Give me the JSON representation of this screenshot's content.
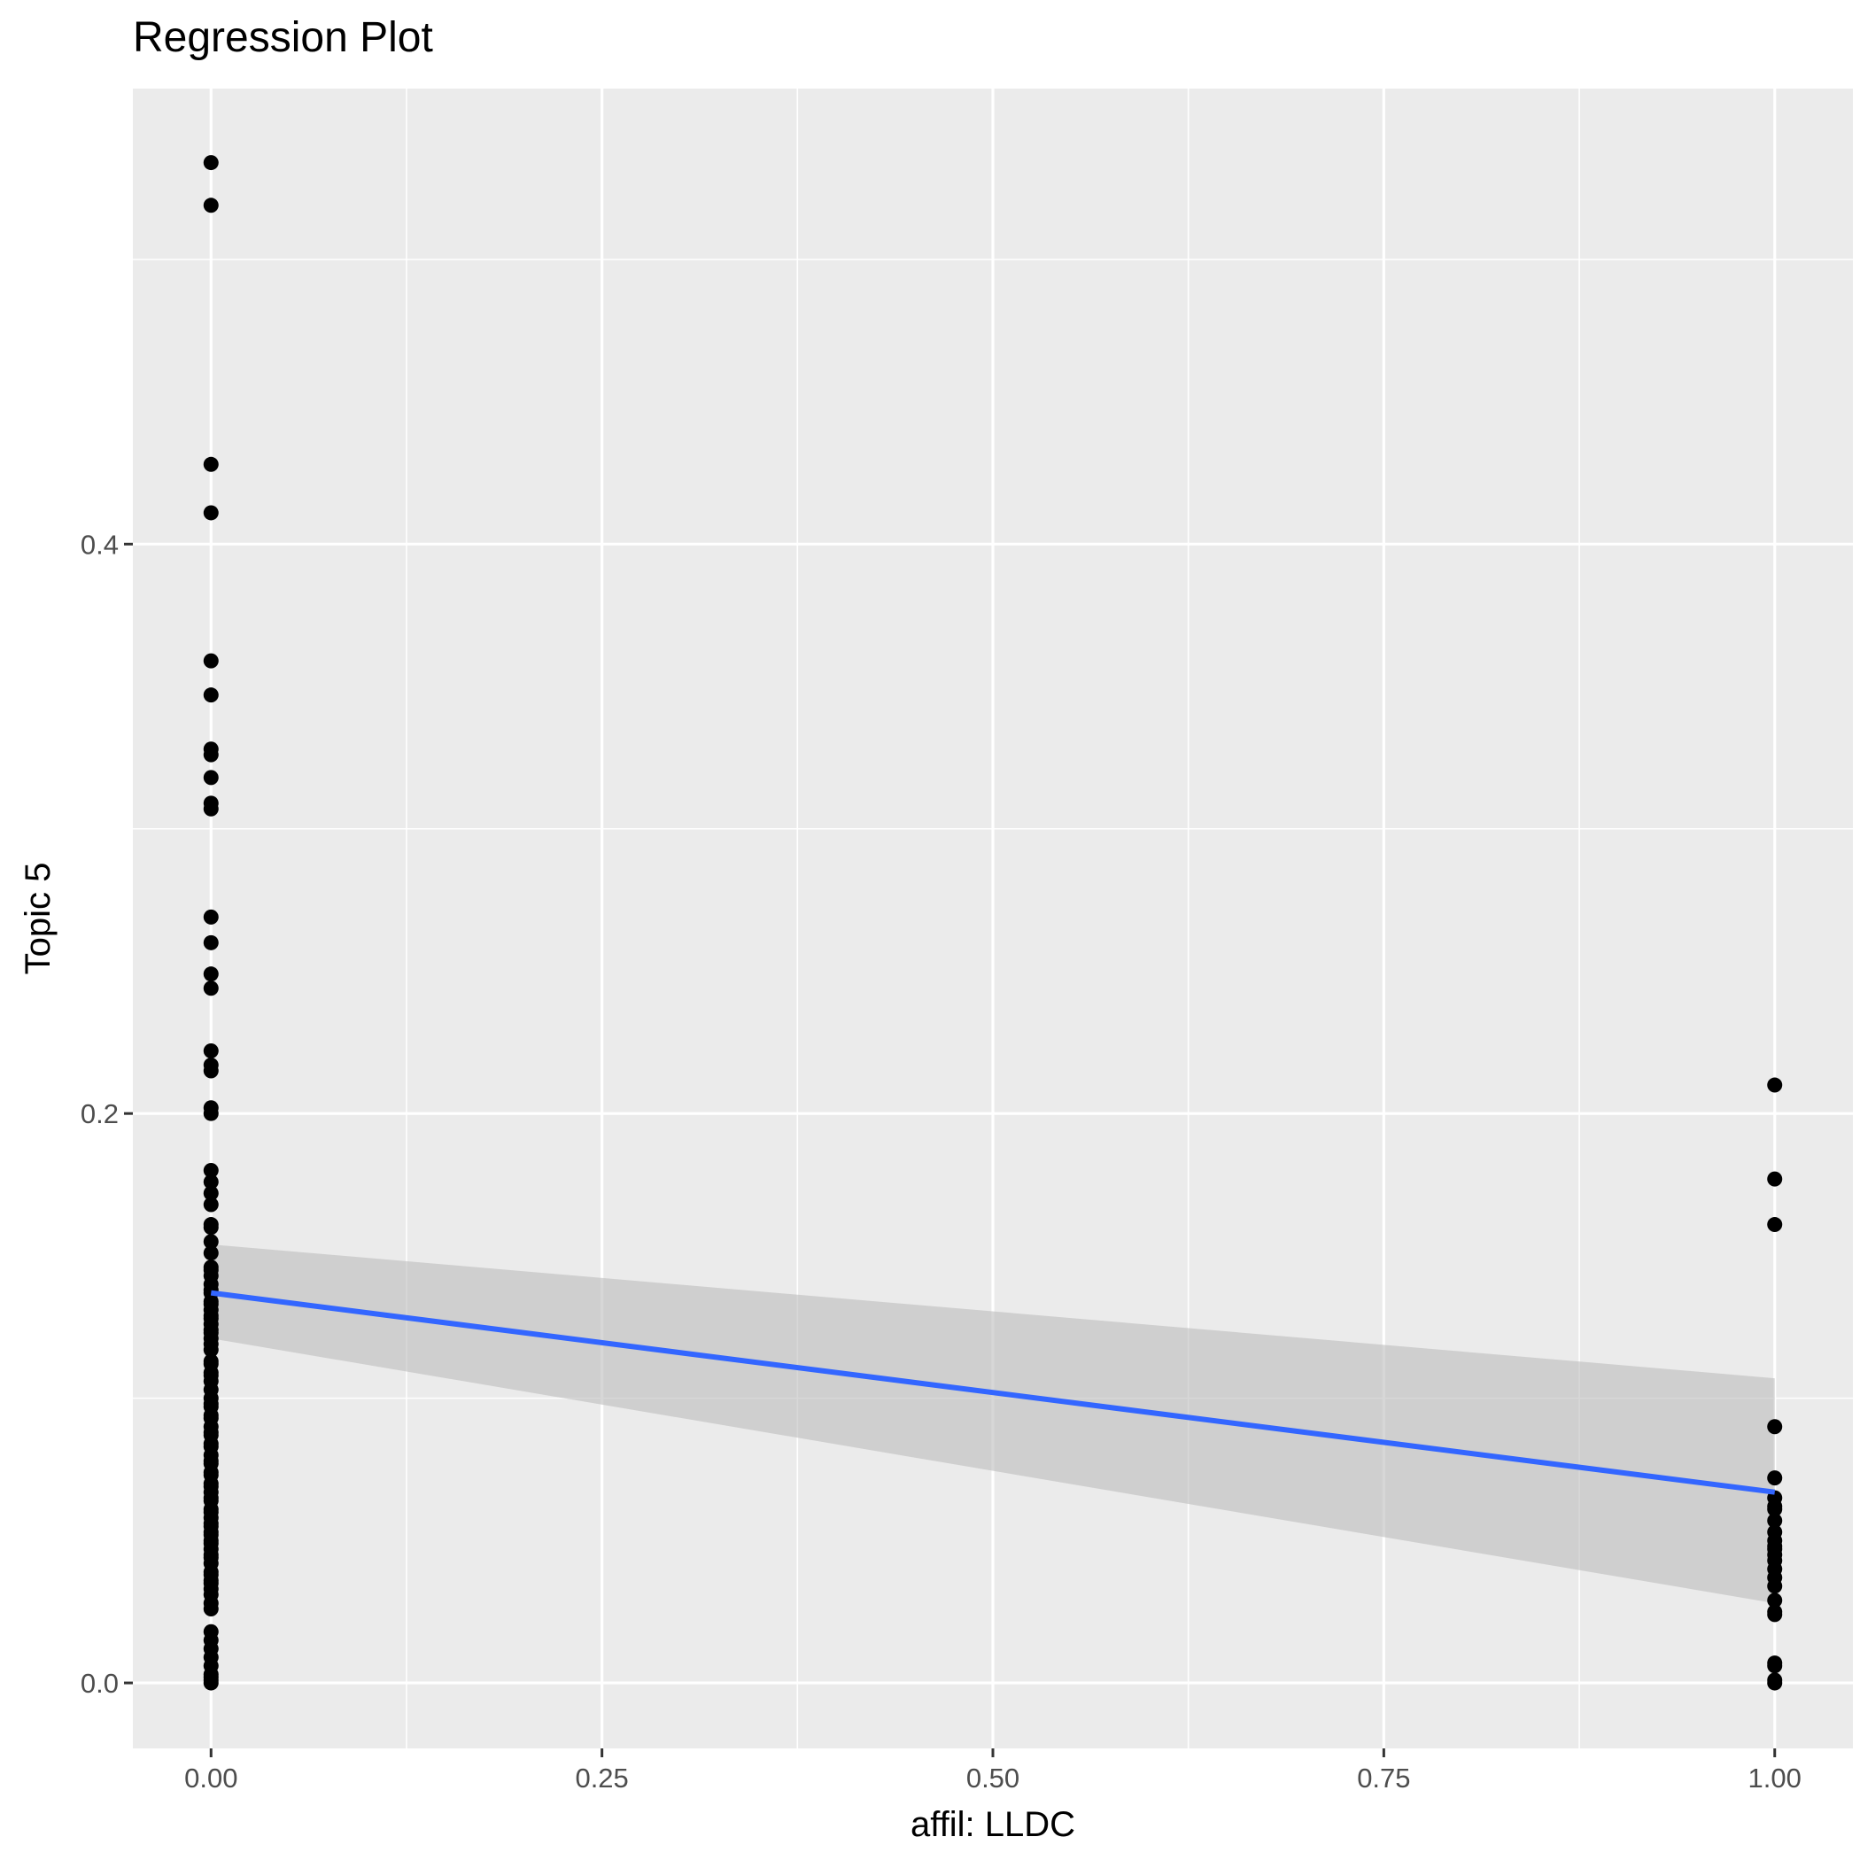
{
  "chart_data": {
    "type": "scatter",
    "title": "Regression Plot",
    "xlabel": "affil: LLDC",
    "ylabel": "Topic 5",
    "xlim": [
      -0.05,
      1.05
    ],
    "ylim": [
      -0.023,
      0.56
    ],
    "x_ticks": [
      0.0,
      0.25,
      0.5,
      0.75,
      1.0
    ],
    "x_tick_labels": [
      "0.00",
      "0.25",
      "0.50",
      "0.75",
      "1.00"
    ],
    "y_ticks": [
      0.0,
      0.2,
      0.4
    ],
    "y_tick_labels": [
      "0.0",
      "0.2",
      "0.4"
    ],
    "grid": true,
    "panel_background": "#ebebeb",
    "grid_color": "#ffffff",
    "point_color": "#000000",
    "line_color": "#3366ff",
    "ribbon_color": "#bdbdbd",
    "series": [
      {
        "x": [
          0,
          0,
          0,
          0,
          0,
          0,
          0,
          0,
          0,
          0,
          0,
          0,
          0,
          0,
          0,
          0,
          0,
          0,
          0,
          0,
          0,
          0,
          0,
          0,
          0,
          0,
          0,
          0,
          0,
          0,
          0,
          0,
          0,
          0,
          0,
          0,
          0,
          0,
          0,
          0,
          0,
          0,
          0,
          0,
          0,
          0,
          0,
          0,
          0,
          0,
          0,
          0,
          0,
          0,
          0,
          0,
          0,
          0,
          0,
          0,
          0,
          0,
          0,
          0,
          0,
          0,
          0,
          0,
          0,
          0,
          0,
          0,
          0,
          0,
          0,
          0,
          0,
          0,
          0,
          0,
          0,
          0,
          0,
          0,
          0,
          0,
          0,
          0,
          0,
          0,
          0,
          0,
          0,
          0,
          0,
          0,
          0,
          0,
          0,
          0,
          0,
          1,
          1,
          1,
          1,
          1,
          1,
          1,
          1,
          1,
          1,
          1,
          1,
          1,
          1,
          1,
          1,
          1,
          1,
          1,
          1,
          1,
          1,
          1,
          1,
          1
        ],
        "y": [
          0.534,
          0.519,
          0.428,
          0.411,
          0.359,
          0.347,
          0.328,
          0.326,
          0.318,
          0.309,
          0.307,
          0.269,
          0.26,
          0.249,
          0.244,
          0.222,
          0.217,
          0.215,
          0.202,
          0.2,
          0.18,
          0.176,
          0.172,
          0.168,
          0.161,
          0.16,
          0.155,
          0.151,
          0.146,
          0.143,
          0.14,
          0.137,
          0.134,
          0.131,
          0.128,
          0.126,
          0.124,
          0.121,
          0.117,
          0.112,
          0.109,
          0.106,
          0.1,
          0.097,
          0.094,
          0.09,
          0.087,
          0.084,
          0.08,
          0.077,
          0.074,
          0.07,
          0.067,
          0.064,
          0.061,
          0.058,
          0.055,
          0.052,
          0.05,
          0.047,
          0.044,
          0.039,
          0.036,
          0.033,
          0.026,
          0.012,
          0.009,
          0.006,
          0.001,
          0.0,
          0.145,
          0.138,
          0.133,
          0.129,
          0.123,
          0.119,
          0.113,
          0.108,
          0.103,
          0.098,
          0.093,
          0.088,
          0.083,
          0.078,
          0.073,
          0.069,
          0.065,
          0.06,
          0.056,
          0.053,
          0.049,
          0.045,
          0.042,
          0.038,
          0.035,
          0.031,
          0.028,
          0.018,
          0.015,
          0.003,
          0.002,
          0.21,
          0.177,
          0.161,
          0.09,
          0.072,
          0.065,
          0.062,
          0.061,
          0.057,
          0.053,
          0.05,
          0.047,
          0.045,
          0.043,
          0.04,
          0.037,
          0.034,
          0.025,
          0.024,
          0.007,
          0.006,
          0.001,
          0.0,
          0.029,
          0.048
        ]
      }
    ],
    "regression": {
      "x": [
        0,
        1
      ],
      "y": [
        0.137,
        0.067
      ],
      "ci_lower": [
        0.121,
        0.028
      ],
      "ci_upper": [
        0.154,
        0.107
      ]
    }
  }
}
